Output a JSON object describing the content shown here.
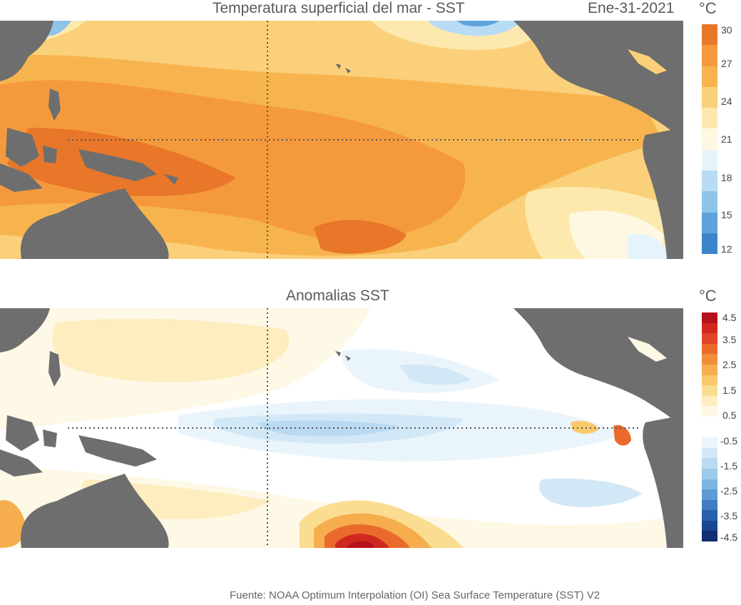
{
  "sst_panel": {
    "title": "Temperatura superficial del mar - SST",
    "date": "Ene-31-2021",
    "unit": "°C",
    "colorbar": {
      "labels": [
        "30",
        "27",
        "24",
        "21",
        "18",
        "15",
        "12"
      ],
      "colors": [
        "#e8772a",
        "#f59a3c",
        "#f7b44e",
        "#fbd07a",
        "#fde9ad",
        "#fef8e2",
        "#e6f3fb",
        "#b8dcf3",
        "#8ec4ea",
        "#5fa3dc",
        "#3c84cc"
      ]
    }
  },
  "anomaly_panel": {
    "title": "Anomalias SST",
    "unit": "°C",
    "colorbar": {
      "labels": [
        "4.5",
        "3.5",
        "2.5",
        "1.5",
        "0.5",
        "-0.5",
        "-1.5",
        "-2.5",
        "-3.5",
        "-4.5"
      ],
      "colors": [
        "#b5121b",
        "#d0281f",
        "#e04527",
        "#ea6a2c",
        "#f28d3a",
        "#f6ad4d",
        "#f9c96c",
        "#fbdd92",
        "#fdedbf",
        "#fef8e6",
        "#ffffff",
        "#ffffff",
        "#eaf4fb",
        "#d3e8f6",
        "#b9daf1",
        "#9ccaea",
        "#7db5e0",
        "#5e9bd4",
        "#3f7cc4",
        "#285fae",
        "#1a4593",
        "#122f72"
      ]
    }
  },
  "source_note": "Fuente: NOAA Optimum Interpolation (OI) Sea Surface Temperature (SST) V2"
}
